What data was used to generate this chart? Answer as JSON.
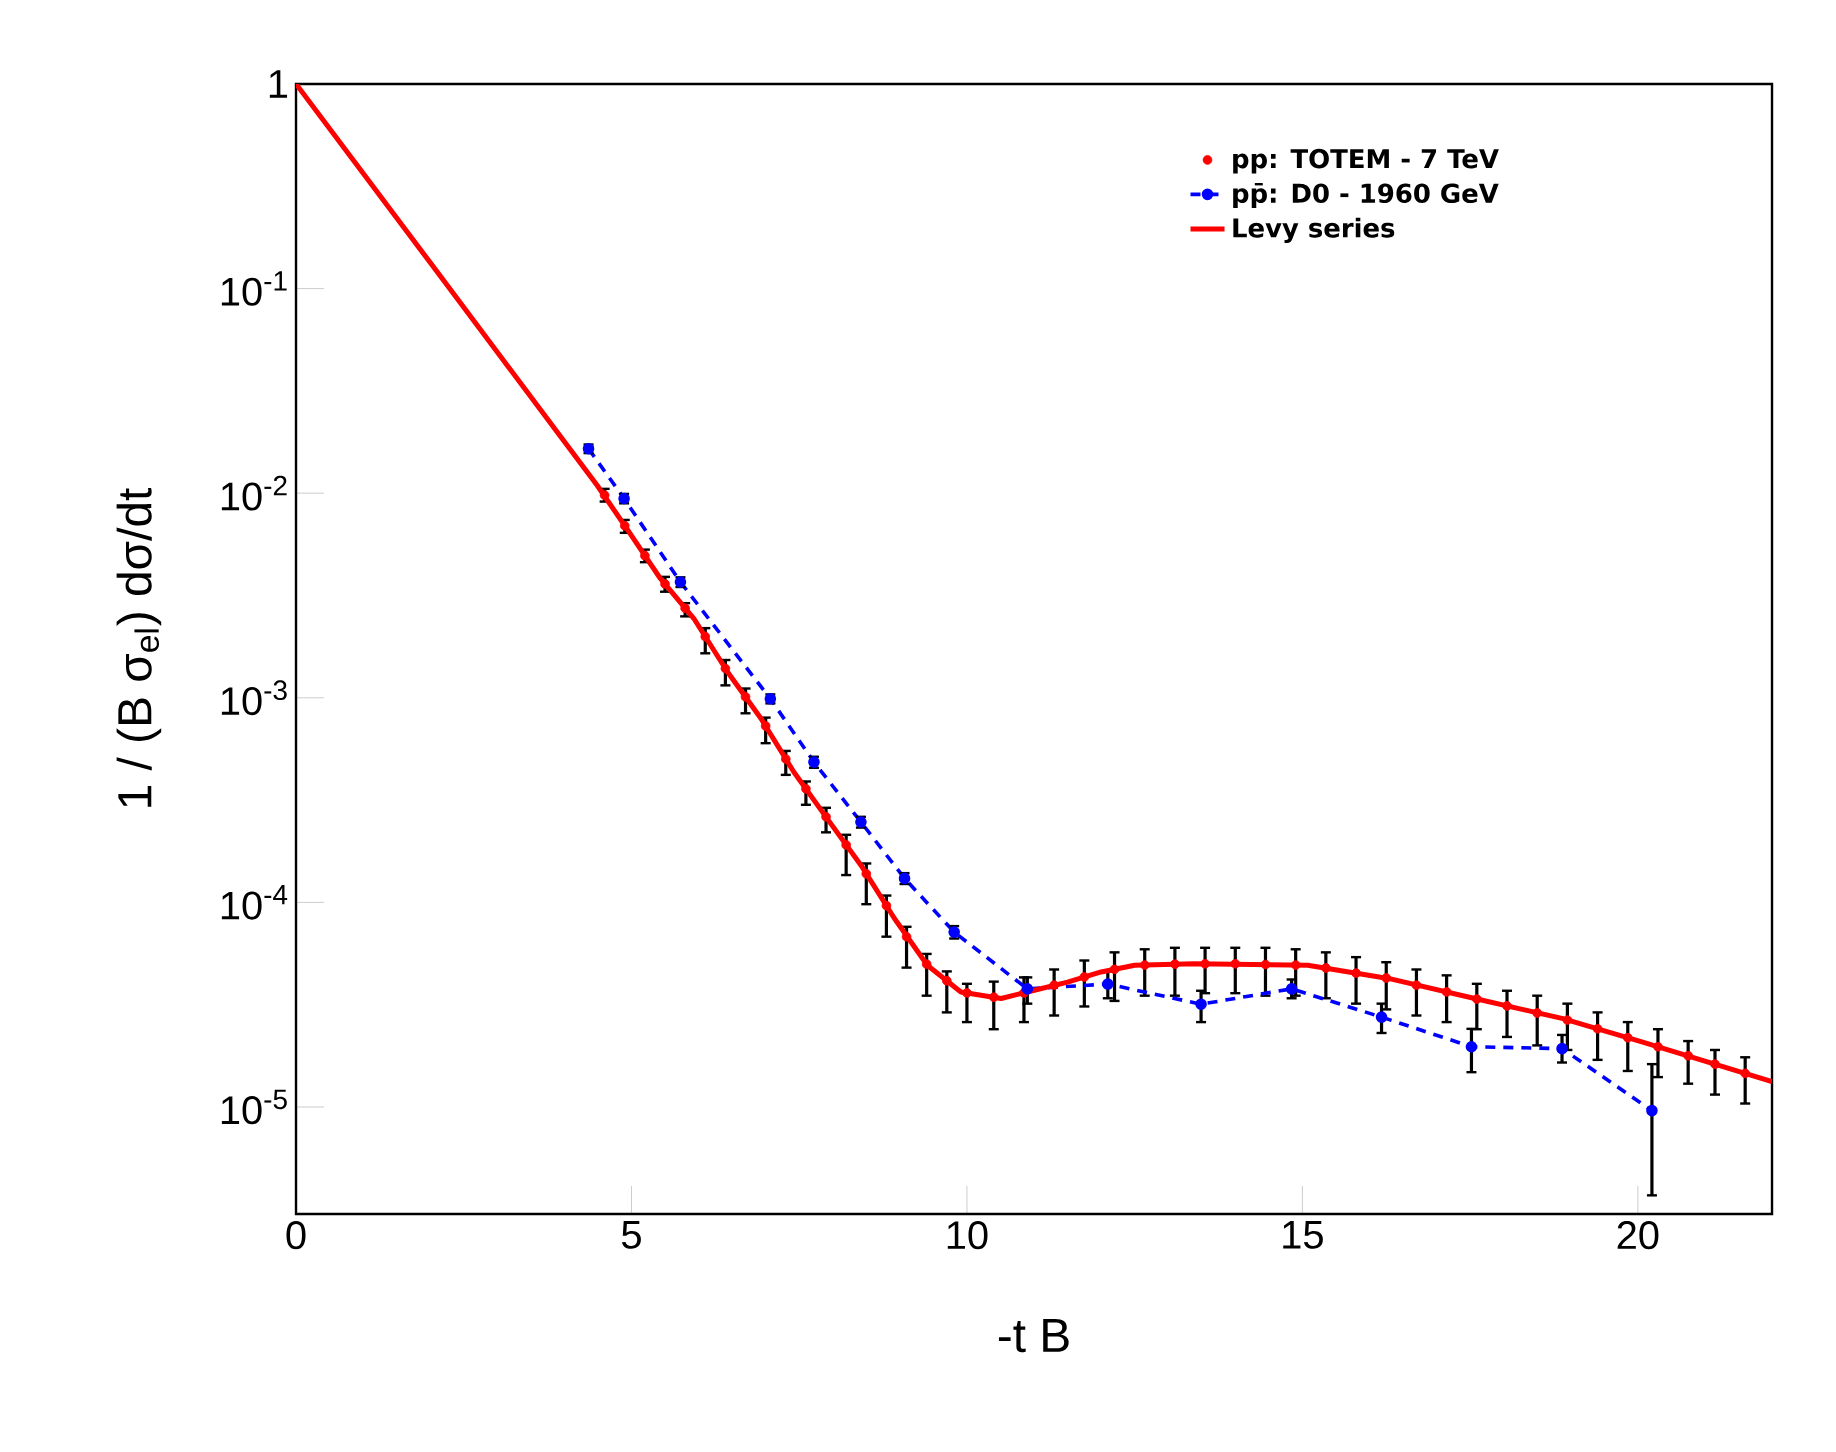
{
  "chart_data": {
    "type": "line",
    "xlabel": "-t B",
    "ylabel": "1 / (B σ$_{el}$)  dσ/dt",
    "log": "y",
    "xlim": [
      0,
      22
    ],
    "ylim": [
      3e-06,
      1
    ],
    "xticks": [
      0,
      5,
      10,
      15,
      20
    ],
    "yticks": [
      {
        "value": 1,
        "label": "1"
      },
      {
        "value": 0.1,
        "label": "10$^{-1}$"
      },
      {
        "value": 0.01,
        "label": "10$^{-2}$"
      },
      {
        "value": 0.001,
        "label": "10$^{-3}$"
      },
      {
        "value": 0.0001,
        "label": "10$^{-4}$"
      },
      {
        "value": 1e-05,
        "label": "10$^{-5}$"
      }
    ],
    "legend": "top right",
    "series": [
      {
        "name": "pp: TOTEM - 7 TeV",
        "type": "scatter",
        "marker": "circle",
        "color": "#ff0000",
        "x": [
          4.6,
          4.9,
          5.2,
          5.5,
          5.8,
          6.1,
          6.4,
          6.7,
          7.0,
          7.3,
          7.6,
          7.9,
          8.2,
          8.5,
          8.8,
          9.1,
          9.4,
          9.7,
          10.0,
          10.4,
          10.85,
          11.3,
          11.75,
          12.2,
          12.65,
          13.1,
          13.55,
          14.0,
          14.45,
          14.9,
          15.35,
          15.8,
          16.25,
          16.7,
          17.15,
          17.6,
          18.05,
          18.5,
          18.95,
          19.4,
          19.85,
          20.3,
          20.75,
          21.15,
          21.6
        ],
        "values": [
          0.00977,
          0.00693,
          0.00495,
          0.0036,
          0.00274,
          0.00199,
          0.00139,
          0.00101,
          0.000728,
          0.000502,
          0.000359,
          0.000262,
          0.000191,
          0.000138,
          9.64e-05,
          6.79e-05,
          4.99e-05,
          4.14e-05,
          3.61e-05,
          3.44e-05,
          3.61e-05,
          3.94e-05,
          4.32e-05,
          4.71e-05,
          4.94e-05,
          4.99e-05,
          5.01e-05,
          5.01e-05,
          4.97e-05,
          4.94e-05,
          4.78e-05,
          4.51e-05,
          4.27e-05,
          3.94e-05,
          3.65e-05,
          3.37e-05,
          3.12e-05,
          2.88e-05,
          2.66e-05,
          2.41e-05,
          2.18e-05,
          1.97e-05,
          1.78e-05,
          1.62e-05,
          1.46e-05
        ],
        "errors": [
          [
            0.0091,
            0.0105
          ],
          [
            0.0064,
            0.0074
          ],
          [
            0.0046,
            0.0053
          ],
          [
            0.0033,
            0.0039
          ],
          [
            0.0025,
            0.0029
          ],
          [
            0.00165,
            0.00219
          ],
          [
            0.00115,
            0.00153
          ],
          [
            0.00084,
            0.00111
          ],
          [
            0.0006,
            0.0008
          ],
          [
            0.00042,
            0.00055
          ],
          [
            0.0003,
            0.00039
          ],
          [
            0.00022,
            0.00029
          ],
          [
            0.000136,
            0.000214
          ],
          [
            9.8e-05,
            0.000155
          ],
          [
            6.8e-05,
            0.000108
          ],
          [
            4.8e-05,
            7.6e-05
          ],
          [
            3.5e-05,
            5.6e-05
          ],
          [
            2.9e-05,
            4.6e-05
          ],
          [
            2.6e-05,
            4e-05
          ],
          [
            2.4e-05,
            4.1e-05
          ],
          [
            2.6e-05,
            4.3e-05
          ],
          [
            2.8e-05,
            4.7e-05
          ],
          [
            3.1e-05,
            5.2e-05
          ],
          [
            3.3e-05,
            5.7e-05
          ],
          [
            3.5e-05,
            5.9e-05
          ],
          [
            3.5e-05,
            6e-05
          ],
          [
            3.6e-05,
            6e-05
          ],
          [
            3.6e-05,
            6e-05
          ],
          [
            3.5e-05,
            6e-05
          ],
          [
            3.5e-05,
            5.9e-05
          ],
          [
            3.4e-05,
            5.7e-05
          ],
          [
            3.2e-05,
            5.4e-05
          ],
          [
            3e-05,
            5.1e-05
          ],
          [
            2.8e-05,
            4.7e-05
          ],
          [
            2.6e-05,
            4.4e-05
          ],
          [
            2.4e-05,
            4e-05
          ],
          [
            2.2e-05,
            3.7e-05
          ],
          [
            2e-05,
            3.5e-05
          ],
          [
            1.9e-05,
            3.2e-05
          ],
          [
            1.7e-05,
            2.9e-05
          ],
          [
            1.5e-05,
            2.6e-05
          ],
          [
            1.4e-05,
            2.4e-05
          ],
          [
            1.3e-05,
            2.1e-05
          ],
          [
            1.15e-05,
            1.9e-05
          ],
          [
            1.04e-05,
            1.75e-05
          ]
        ]
      },
      {
        "name": "pp̄: D0 - 1960 GeV",
        "type": "line",
        "marker": "circle",
        "line_style": "dashed",
        "color": "#0000ff",
        "x": [
          4.36,
          4.89,
          5.73,
          7.07,
          7.72,
          8.42,
          9.07,
          9.81,
          10.9,
          12.1,
          13.49,
          14.84,
          16.18,
          17.52,
          18.87,
          20.21
        ],
        "values": [
          0.0165,
          0.00942,
          0.00368,
          0.000989,
          0.000485,
          0.000247,
          0.000131,
          7.16e-05,
          3.78e-05,
          3.99e-05,
          3.18e-05,
          3.78e-05,
          2.75e-05,
          1.97e-05,
          1.93e-05,
          9.6e-06
        ],
        "errors": [
          0.0008,
          0.0005,
          0.0002,
          5e-05,
          3e-05,
          1.5e-05,
          8e-06,
          5e-06,
          [
            3.2e-05,
            4.3e-05
          ],
          [
            3.4e-05,
            4.6e-05
          ],
          [
            2.6e-05,
            3.7e-05
          ],
          [
            3.4e-05,
            4.2e-05
          ],
          [
            2.3e-05,
            3.2e-05
          ],
          [
            1.48e-05,
            2.41e-05
          ],
          [
            1.65e-05,
            2.25e-05
          ],
          [
            3.7e-06,
            1.62e-05
          ]
        ]
      },
      {
        "name": "Levy series",
        "type": "line",
        "marker": "none",
        "line_style": "solid",
        "color": "#ff0000",
        "x": [
          0,
          2.0,
          4.49,
          4.93,
          5.43,
          5.93,
          6.43,
          6.93,
          7.42,
          7.92,
          8.42,
          8.92,
          9.41,
          9.91,
          10.51,
          10.9,
          11.5,
          12.0,
          12.5,
          13.39,
          15.08,
          16.28,
          17.57,
          18.87,
          20.06,
          22.0
        ],
        "values": [
          1.0,
          0.134,
          0.0109,
          0.00671,
          0.00383,
          0.00244,
          0.00134,
          0.000792,
          0.000434,
          0.000256,
          0.000152,
          8.34e-05,
          4.93e-05,
          3.65e-05,
          3.39e-05,
          3.65e-05,
          4.08e-05,
          4.57e-05,
          4.93e-05,
          5.01e-05,
          4.93e-05,
          4.25e-05,
          3.39e-05,
          2.71e-05,
          2.08e-05,
          1.33e-05
        ]
      }
    ]
  }
}
